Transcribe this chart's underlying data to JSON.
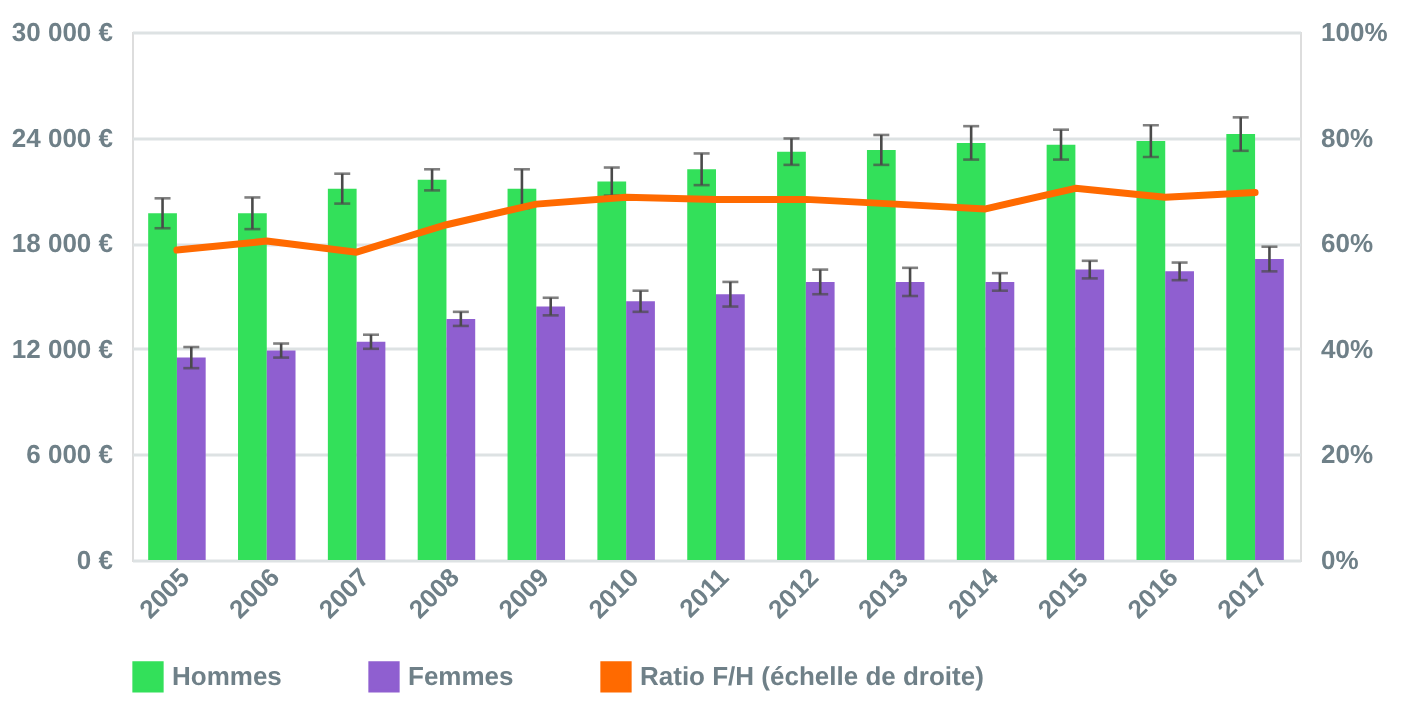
{
  "chart_data": {
    "type": "bar",
    "categories": [
      "2005",
      "2006",
      "2007",
      "2008",
      "2009",
      "2010",
      "2011",
      "2012",
      "2013",
      "2014",
      "2015",
      "2016",
      "2017"
    ],
    "series": [
      {
        "name": "Hommes",
        "color": "#33e05a",
        "values": [
          19700,
          19700,
          21100,
          21600,
          21100,
          21500,
          22200,
          23200,
          23300,
          23700,
          23600,
          23800,
          24200
        ],
        "errors": [
          850,
          900,
          850,
          600,
          1100,
          800,
          900,
          750,
          850,
          950,
          850,
          900,
          950
        ]
      },
      {
        "name": "Femmes",
        "color": "#8f5fd0",
        "values": [
          11500,
          11900,
          12400,
          13700,
          14400,
          14700,
          15100,
          15800,
          15800,
          15800,
          16500,
          16400,
          17100
        ],
        "errors": [
          600,
          400,
          400,
          400,
          500,
          600,
          700,
          700,
          800,
          500,
          500,
          500,
          700
        ]
      },
      {
        "name": "Ratio F/H (échelle de droite)",
        "type": "line",
        "axis": "y2",
        "color": "#ff6a00",
        "values": [
          58.7,
          60.4,
          58.3,
          63.5,
          67.4,
          68.7,
          68.3,
          68.3,
          67.4,
          66.5,
          70.4,
          68.7,
          69.6
        ]
      }
    ],
    "ylim": [
      0,
      30000
    ],
    "yticks": [
      {
        "value": 0,
        "label": "0 €"
      },
      {
        "value": 6000,
        "label": "6 000 €"
      },
      {
        "value": 12000,
        "label": "12 000 €"
      },
      {
        "value": 18000,
        "label": "18 000 €"
      },
      {
        "value": 24000,
        "label": "24 000 €"
      },
      {
        "value": 30000,
        "label": "30 000 €"
      }
    ],
    "y2lim": [
      0,
      100
    ],
    "y2ticks": [
      {
        "value": 0,
        "label": "0%"
      },
      {
        "value": 20,
        "label": "20%"
      },
      {
        "value": 40,
        "label": "40%"
      },
      {
        "value": 60,
        "label": "60%"
      },
      {
        "value": 80,
        "label": "80%"
      },
      {
        "value": 100,
        "label": "100%"
      }
    ],
    "grid": "y",
    "legend": "bottom"
  }
}
